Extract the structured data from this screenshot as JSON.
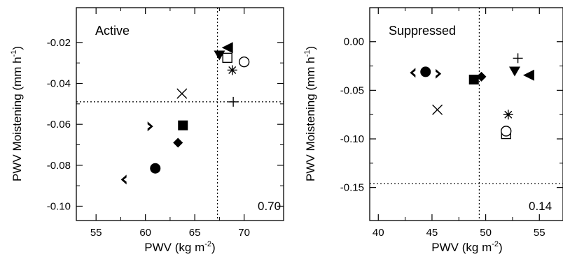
{
  "chart_data": [
    {
      "type": "scatter",
      "title": "",
      "panel_label": "Active",
      "corner_value": "0.70",
      "xlabel_main": "PWV (kg m",
      "xlabel_sup": "-2",
      "xlabel_end": ")",
      "ylabel_main": "PWV Moistening (mm h",
      "ylabel_sup": "-1",
      "ylabel_end": ")",
      "xlim": [
        53,
        74
      ],
      "ylim": [
        -0.107,
        -0.003
      ],
      "xticks": [
        55,
        60,
        65,
        70
      ],
      "xtick_labels": [
        "55",
        "60",
        "65",
        "70"
      ],
      "yticks": [
        -0.1,
        -0.08,
        -0.06,
        -0.04,
        -0.02
      ],
      "ytick_labels": [
        "-0.10",
        "-0.08",
        "-0.06",
        "-0.04",
        "-0.02"
      ],
      "vline": 67.3,
      "hline": -0.049,
      "grid": false,
      "points": [
        {
          "marker": "tri-left-small",
          "x": 57.8,
          "y": -0.087
        },
        {
          "marker": "circle-filled",
          "x": 61.0,
          "y": -0.0815
        },
        {
          "marker": "diamond-filled",
          "x": 63.3,
          "y": -0.069
        },
        {
          "marker": "tri-right-small",
          "x": 60.5,
          "y": -0.061
        },
        {
          "marker": "square-filled",
          "x": 63.8,
          "y": -0.0605
        },
        {
          "marker": "x-cross",
          "x": 63.7,
          "y": -0.045
        },
        {
          "marker": "plus",
          "x": 68.9,
          "y": -0.049
        },
        {
          "marker": "asterisk",
          "x": 68.8,
          "y": -0.0335
        },
        {
          "marker": "circle-open",
          "x": 70.0,
          "y": -0.0295
        },
        {
          "marker": "square-open",
          "x": 68.3,
          "y": -0.0275
        },
        {
          "marker": "tri-down-filled",
          "x": 67.5,
          "y": -0.026
        },
        {
          "marker": "tri-left-filled",
          "x": 68.3,
          "y": -0.0225
        }
      ]
    },
    {
      "type": "scatter",
      "title": "",
      "panel_label": "Suppressed",
      "corner_value": "0.14",
      "xlabel_main": "PWV (kg m",
      "xlabel_sup": "-2",
      "xlabel_end": ")",
      "ylabel_main": "PWV Moistening (mm h",
      "ylabel_sup": "-1",
      "ylabel_end": ")",
      "xlim": [
        39.2,
        57.2
      ],
      "ylim": [
        -0.184,
        0.035
      ],
      "xticks": [
        40,
        45,
        50,
        55
      ],
      "xtick_labels": [
        "40",
        "45",
        "50",
        "55"
      ],
      "yticks": [
        0.0,
        -0.05,
        -0.1,
        -0.15
      ],
      "ytick_labels": [
        "0.00",
        "-0.05",
        "-0.10",
        "-0.15"
      ],
      "vline": 49.4,
      "hline": -0.146,
      "grid": false,
      "points": [
        {
          "marker": "tri-left-small",
          "x": 43.2,
          "y": -0.032
        },
        {
          "marker": "circle-filled",
          "x": 44.4,
          "y": -0.031
        },
        {
          "marker": "tri-right-small",
          "x": 45.6,
          "y": -0.033
        },
        {
          "marker": "x-cross",
          "x": 45.5,
          "y": -0.07
        },
        {
          "marker": "square-filled",
          "x": 48.9,
          "y": -0.039
        },
        {
          "marker": "diamond-filled",
          "x": 49.6,
          "y": -0.036
        },
        {
          "marker": "square-open",
          "x": 51.9,
          "y": -0.095
        },
        {
          "marker": "circle-open",
          "x": 51.9,
          "y": -0.092
        },
        {
          "marker": "asterisk",
          "x": 52.1,
          "y": -0.075
        },
        {
          "marker": "plus",
          "x": 53.0,
          "y": -0.017
        },
        {
          "marker": "tri-down-filled",
          "x": 52.7,
          "y": -0.03
        },
        {
          "marker": "tri-left-filled",
          "x": 54.0,
          "y": -0.0345
        }
      ]
    }
  ]
}
